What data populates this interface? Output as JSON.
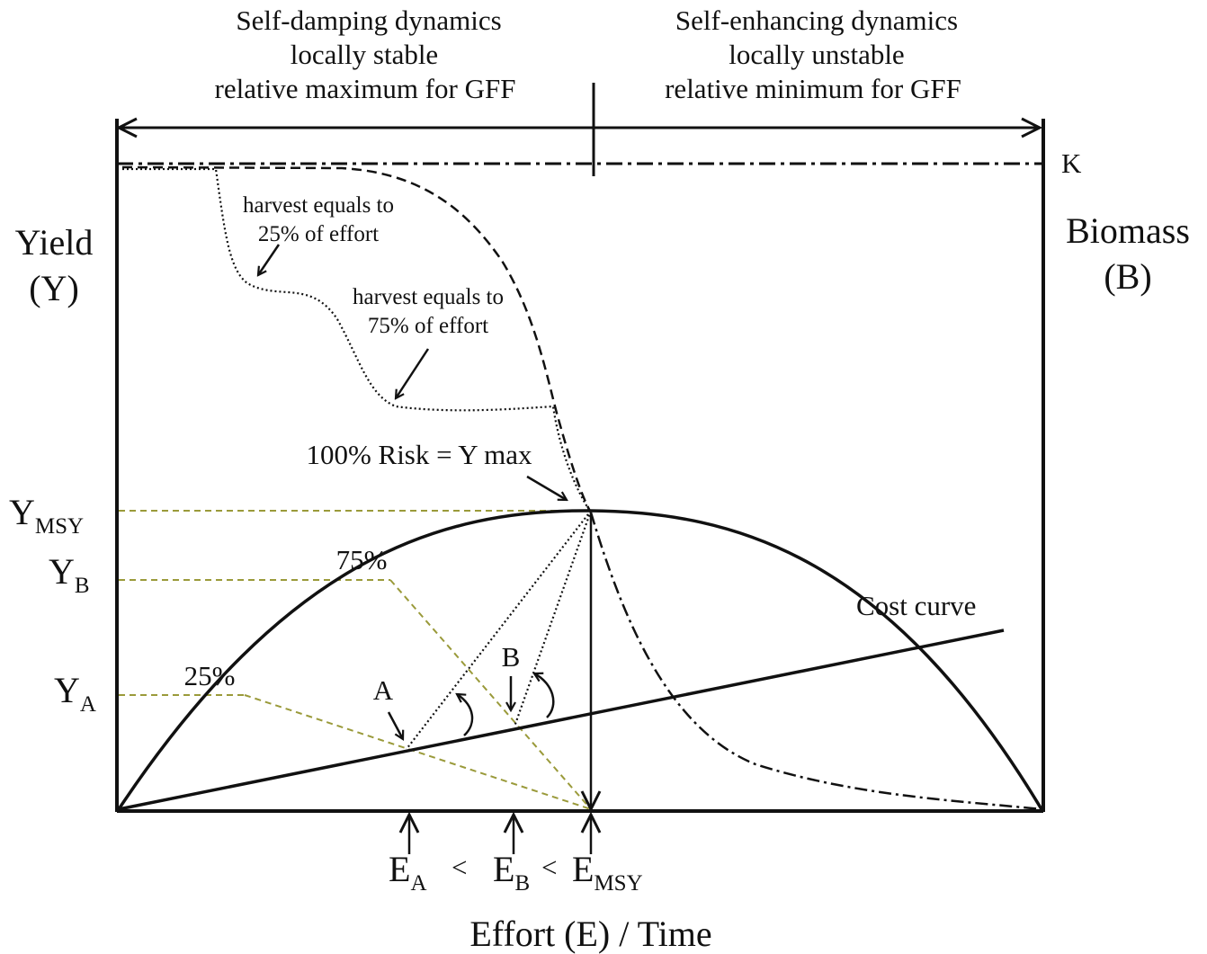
{
  "header": {
    "left": {
      "line1": "Self-damping dynamics",
      "line2": "locally stable",
      "line3": "relative  maximum for GFF"
    },
    "right": {
      "line1": "Self-enhancing dynamics",
      "line2": "locally unstable",
      "line3": "relative  minimum for GFF"
    }
  },
  "left_axis": {
    "line1": "Yield",
    "line2": "(Y)"
  },
  "right_axis": {
    "line1": "Biomass",
    "line2": "(B)"
  },
  "k_label": "K",
  "y_labels": {
    "msy": {
      "main": "Y",
      "sub": "MSY"
    },
    "b": {
      "main": "Y",
      "sub": "B"
    },
    "a": {
      "main": "Y",
      "sub": "A"
    }
  },
  "x_labels": {
    "ea": {
      "main": "E",
      "sub": "A"
    },
    "lt1": "<",
    "eb": {
      "main": "E",
      "sub": "B"
    },
    "lt2": "<",
    "emsy": {
      "main": "E",
      "sub": "MSY"
    }
  },
  "x_axis_title": "Effort  (E) / Time",
  "annotations": {
    "h25_line1": "harvest equals to",
    "h25_line2": "25% of effort",
    "h75_line1": "harvest equals to",
    "h75_line2": "75% of effort",
    "risk": "100% Risk = Y max",
    "pct75": "75%",
    "pct25": "25%",
    "cost_curve": "Cost curve",
    "point_a": "A",
    "point_b": "B"
  },
  "colors": {
    "ink": "#111111",
    "guide": "#9a9a3a"
  }
}
